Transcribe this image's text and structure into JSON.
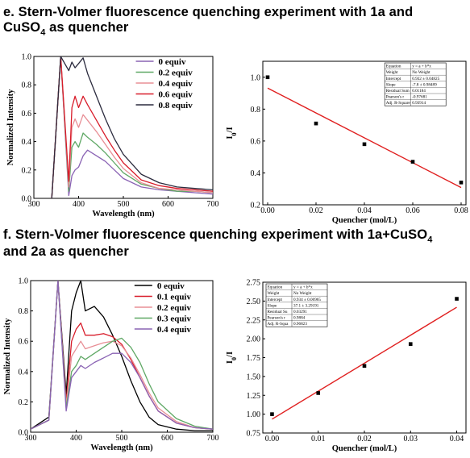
{
  "headings": {
    "e_line1": "e. Stern-Volmer fluorescence quenching experiment with 1a and",
    "e_line2_a": "CuSO",
    "e_line2_sub": "4",
    "e_line2_b": " as quencher",
    "f_line1_a": "f. Stern-Volmer fluorescence quenching experiment with 1a+CuSO",
    "f_line1_sub": "4",
    "f_line2": "and 2a as quencher"
  },
  "chart_data": [
    {
      "id": "e-fluorescence",
      "type": "line",
      "xlabel": "Wavelength (nm)",
      "ylabel": "Normalized Intensity",
      "xlim": [
        300,
        700
      ],
      "ylim": [
        0.0,
        1.0
      ],
      "xticks": [
        "300",
        "400",
        "500",
        "600",
        "700"
      ],
      "yticks": [
        "0.0",
        "0.2",
        "0.4",
        "0.6",
        "0.8",
        "1.0"
      ],
      "legend_position": "top-right",
      "x": [
        340,
        360,
        378,
        385,
        392,
        400,
        410,
        420,
        440,
        460,
        480,
        500,
        540,
        580,
        620,
        660,
        700
      ],
      "series": [
        {
          "name": "0 equiv",
          "color": "#8a63b4",
          "values": [
            0.0,
            1.0,
            0.02,
            0.16,
            0.2,
            0.22,
            0.3,
            0.34,
            0.3,
            0.26,
            0.2,
            0.14,
            0.08,
            0.06,
            0.05,
            0.04,
            0.03
          ]
        },
        {
          "name": "0.2 equiv",
          "color": "#5fa865",
          "values": [
            0.0,
            1.0,
            0.05,
            0.36,
            0.4,
            0.36,
            0.46,
            0.43,
            0.38,
            0.32,
            0.25,
            0.18,
            0.1,
            0.07,
            0.05,
            0.05,
            0.04
          ]
        },
        {
          "name": "0.4 equiv",
          "color": "#e88f96",
          "values": [
            0.0,
            1.0,
            0.08,
            0.5,
            0.56,
            0.5,
            0.59,
            0.55,
            0.47,
            0.38,
            0.29,
            0.21,
            0.11,
            0.07,
            0.06,
            0.05,
            0.04
          ]
        },
        {
          "name": "0.6 equiv",
          "color": "#d81c2a",
          "values": [
            0.0,
            1.0,
            0.12,
            0.64,
            0.72,
            0.64,
            0.72,
            0.66,
            0.55,
            0.44,
            0.34,
            0.25,
            0.13,
            0.09,
            0.07,
            0.06,
            0.05
          ]
        },
        {
          "name": "0.8 equiv",
          "color": "#2b2b3e",
          "values": [
            0.0,
            1.0,
            0.9,
            0.96,
            0.92,
            0.95,
            0.99,
            0.88,
            0.72,
            0.56,
            0.42,
            0.31,
            0.17,
            0.11,
            0.08,
            0.07,
            0.06
          ]
        }
      ]
    },
    {
      "id": "e-stern-volmer",
      "type": "scatter",
      "xlabel": "Quencher (mol/L)",
      "ylabel_main": "I",
      "ylabel_sub": "0",
      "ylabel_tail": "/I",
      "xlim": [
        -0.002,
        0.082
      ],
      "ylim": [
        0.2,
        1.1
      ],
      "xticks": [
        "0.00",
        "0.02",
        "0.04",
        "0.06",
        "0.08"
      ],
      "yticks": [
        "0.2",
        "0.4",
        "0.6",
        "0.8",
        "1.0"
      ],
      "points": {
        "x": [
          0.0,
          0.02,
          0.04,
          0.06,
          0.08
        ],
        "y": [
          1.0,
          0.71,
          0.58,
          0.47,
          0.34
        ]
      },
      "fit": {
        "intercept": 0.932,
        "slope": -7.8,
        "color": "#e02020"
      },
      "table": [
        [
          "Equation",
          "y = a + b*x"
        ],
        [
          "Weight",
          "No Weight"
        ],
        [
          "Intercept",
          "0.932 ± 0.04825"
        ],
        [
          "Slope",
          "-7.8 ± 0.98489"
        ],
        [
          "Residual Sum",
          "0.01184"
        ],
        [
          "Pearson's r",
          "-0.97681"
        ],
        [
          "Adj. R-Square",
          "0.93914"
        ]
      ]
    },
    {
      "id": "f-fluorescence",
      "type": "line",
      "xlabel": "Wavelength (nm)",
      "ylabel": "Normalized Intensity",
      "xlim": [
        300,
        700
      ],
      "ylim": [
        0.0,
        1.0
      ],
      "xticks": [
        "300",
        "400",
        "500",
        "600",
        "700"
      ],
      "yticks": [
        "0.0",
        "0.2",
        "0.4",
        "0.6",
        "0.8",
        "1.0"
      ],
      "legend_position": "top-right",
      "x": [
        300,
        340,
        360,
        378,
        390,
        400,
        410,
        420,
        440,
        460,
        480,
        500,
        520,
        540,
        560,
        580,
        620,
        660,
        700
      ],
      "series": [
        {
          "name": "0 equiv",
          "color": "#000000",
          "values": [
            0.02,
            0.1,
            1.0,
            0.25,
            0.8,
            0.92,
            1.0,
            0.8,
            0.83,
            0.76,
            0.64,
            0.5,
            0.34,
            0.2,
            0.1,
            0.05,
            0.02,
            0.01,
            0.01
          ]
        },
        {
          "name": "0.1 equiv",
          "color": "#d81c2a",
          "values": [
            0.02,
            0.08,
            1.0,
            0.2,
            0.6,
            0.68,
            0.72,
            0.64,
            0.64,
            0.65,
            0.63,
            0.58,
            0.48,
            0.36,
            0.24,
            0.14,
            0.06,
            0.03,
            0.02
          ]
        },
        {
          "name": "0.2 equiv",
          "color": "#e88f96",
          "values": [
            0.02,
            0.08,
            1.0,
            0.18,
            0.5,
            0.55,
            0.6,
            0.55,
            0.57,
            0.59,
            0.6,
            0.57,
            0.49,
            0.38,
            0.26,
            0.16,
            0.07,
            0.03,
            0.02
          ]
        },
        {
          "name": "0.3 equiv",
          "color": "#5fa865",
          "values": [
            0.02,
            0.08,
            1.0,
            0.16,
            0.4,
            0.44,
            0.5,
            0.48,
            0.52,
            0.56,
            0.6,
            0.62,
            0.56,
            0.46,
            0.32,
            0.2,
            0.09,
            0.04,
            0.02
          ]
        },
        {
          "name": "0.4 equiv",
          "color": "#8a63b4",
          "values": [
            0.02,
            0.08,
            1.0,
            0.14,
            0.36,
            0.4,
            0.44,
            0.42,
            0.46,
            0.49,
            0.52,
            0.52,
            0.46,
            0.36,
            0.24,
            0.14,
            0.06,
            0.03,
            0.02
          ]
        }
      ]
    },
    {
      "id": "f-stern-volmer",
      "type": "scatter",
      "xlabel": "Quencher (mol/L)",
      "ylabel_main": "I",
      "ylabel_sub": "0",
      "ylabel_tail": "/I",
      "xlim": [
        -0.002,
        0.042
      ],
      "ylim": [
        0.75,
        2.75
      ],
      "xticks": [
        "0.00",
        "0.01",
        "0.02",
        "0.03",
        "0.04"
      ],
      "yticks": [
        "0.75",
        "1.00",
        "1.25",
        "1.50",
        "1.75",
        "2.00",
        "2.25",
        "2.50",
        "2.75"
      ],
      "points": {
        "x": [
          0.0,
          0.01,
          0.02,
          0.03,
          0.04
        ],
        "y": [
          1.0,
          1.28,
          1.64,
          1.93,
          2.53
        ]
      },
      "fit": {
        "intercept": 0.934,
        "slope": 37.1,
        "color": "#e02020"
      },
      "table": [
        [
          "Equation",
          "y = a + b*x"
        ],
        [
          "Weight",
          "No Weight"
        ],
        [
          "Intercept",
          "0.934 ± 0.06965"
        ],
        [
          "Slope",
          "37.1 ± 3.29191"
        ],
        [
          "Residual Su",
          "0.03291"
        ],
        [
          "Pearson's r",
          "0.9884"
        ],
        [
          "Adj. R-Squa",
          "0.96823"
        ]
      ]
    }
  ]
}
